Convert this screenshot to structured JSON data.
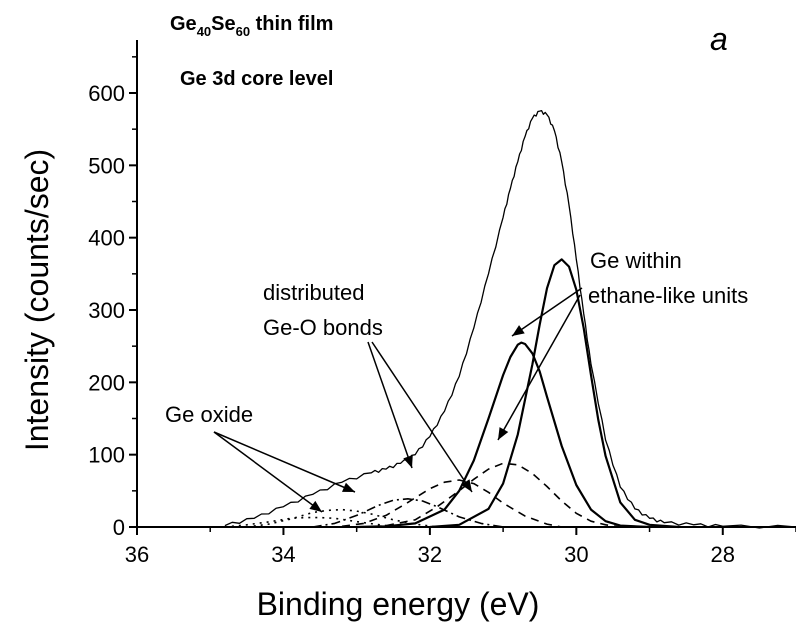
{
  "chart_data": {
    "type": "line",
    "title_parts": {
      "compound": "Ge",
      "sub1": "40",
      "mid": "Se",
      "sub2": "60",
      "rest": " thin film"
    },
    "subtitle": "Ge 3d core level",
    "panel_label": "a",
    "xlabel": "Binding energy (eV)",
    "ylabel": "Intensity (counts/sec)",
    "xlim": [
      36,
      27
    ],
    "ylim": [
      0,
      650
    ],
    "x_reversed": true,
    "xticks": [
      36,
      34,
      32,
      30,
      28
    ],
    "yticks": [
      0,
      100,
      200,
      300,
      400,
      500,
      600
    ],
    "grid": false,
    "series": [
      {
        "style": "solid-noisy",
        "x": [
          34.8,
          34.4,
          34.0,
          33.6,
          33.2,
          32.8,
          32.6,
          32.4,
          32.2,
          32.0,
          31.8,
          31.6,
          31.4,
          31.2,
          31.0,
          30.9,
          30.8,
          30.7,
          30.6,
          30.5,
          30.4,
          30.3,
          30.2,
          30.1,
          30.0,
          29.9,
          29.8,
          29.6,
          29.4,
          29.2,
          29.0,
          28.8,
          28.4,
          28.0,
          27.0
        ],
        "values": [
          2,
          12,
          28,
          45,
          62,
          75,
          80,
          88,
          100,
          125,
          160,
          208,
          275,
          350,
          428,
          468,
          505,
          540,
          565,
          575,
          570,
          548,
          505,
          445,
          370,
          295,
          225,
          120,
          55,
          25,
          12,
          6,
          3,
          1,
          0
        ]
      },
      {
        "style": "solid-thick",
        "x": [
          33.0,
          32.6,
          32.2,
          31.8,
          31.6,
          31.4,
          31.2,
          31.0,
          30.9,
          30.8,
          30.75,
          30.7,
          30.6,
          30.5,
          30.4,
          30.2,
          30.0,
          29.8,
          29.6,
          29.4,
          29.0
        ],
        "values": [
          0,
          1,
          5,
          24,
          50,
          92,
          150,
          210,
          235,
          252,
          255,
          253,
          240,
          215,
          180,
          112,
          58,
          24,
          8,
          2,
          0
        ]
      },
      {
        "style": "solid-thick",
        "x": [
          32.0,
          31.6,
          31.2,
          31.0,
          30.8,
          30.6,
          30.5,
          30.4,
          30.3,
          30.2,
          30.1,
          30.0,
          29.9,
          29.8,
          29.7,
          29.6,
          29.4,
          29.2,
          29.0,
          28.6
        ],
        "values": [
          0,
          3,
          25,
          60,
          128,
          225,
          280,
          330,
          362,
          370,
          360,
          328,
          275,
          210,
          148,
          98,
          34,
          10,
          3,
          0
        ]
      },
      {
        "style": "dashed",
        "x": [
          32.6,
          32.2,
          31.9,
          31.6,
          31.4,
          31.2,
          31.0,
          30.8,
          30.6,
          30.4,
          30.2,
          30.0,
          29.8,
          29.6,
          29.4
        ],
        "values": [
          2,
          10,
          28,
          50,
          66,
          80,
          88,
          86,
          74,
          56,
          36,
          19,
          8,
          3,
          0
        ]
      },
      {
        "style": "dashed",
        "x": [
          33.2,
          32.9,
          32.6,
          32.3,
          32.0,
          31.8,
          31.6,
          31.4,
          31.2,
          31.0,
          30.7,
          30.4,
          30.2
        ],
        "values": [
          1,
          5,
          16,
          34,
          53,
          62,
          65,
          60,
          48,
          33,
          15,
          4,
          0
        ]
      },
      {
        "style": "dash-dot",
        "x": [
          33.6,
          33.3,
          33.0,
          32.7,
          32.5,
          32.3,
          32.1,
          31.9,
          31.6,
          31.3,
          31.0
        ],
        "values": [
          0,
          5,
          16,
          30,
          37,
          39,
          36,
          28,
          14,
          5,
          0
        ]
      },
      {
        "style": "dotted",
        "x": [
          34.5,
          34.2,
          33.9,
          33.6,
          33.4,
          33.2,
          33.0,
          32.8,
          32.5,
          32.2,
          31.9
        ],
        "values": [
          0,
          4,
          11,
          20,
          23,
          24,
          22,
          18,
          10,
          4,
          0
        ]
      },
      {
        "style": "dotted",
        "x": [
          34.8,
          34.5,
          34.2,
          33.9,
          33.7,
          33.5,
          33.3,
          33.1,
          32.9,
          32.6,
          32.3
        ],
        "values": [
          0,
          3,
          7,
          12,
          13,
          13,
          12,
          9,
          6,
          2,
          0
        ]
      }
    ],
    "annotations": [
      {
        "id": "ge-within",
        "lines": [
          "Ge within",
          "ethane-like units"
        ]
      },
      {
        "id": "distributed",
        "lines": [
          "distributed",
          "Ge-O bonds"
        ]
      },
      {
        "id": "ge-oxide",
        "lines": [
          "Ge oxide"
        ]
      }
    ]
  }
}
